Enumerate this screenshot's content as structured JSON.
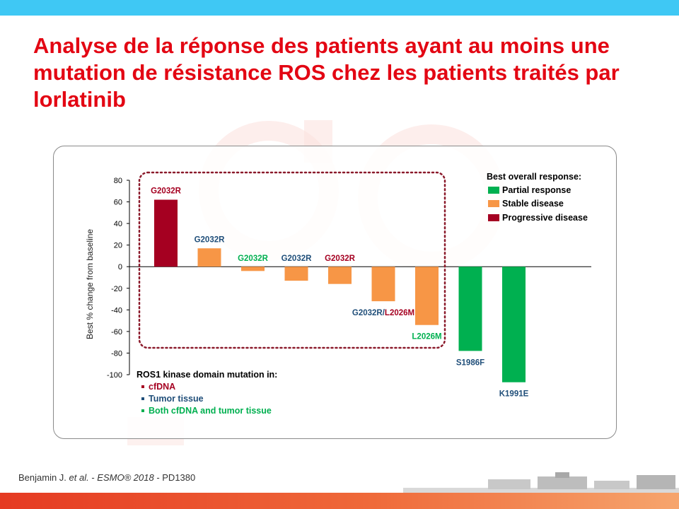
{
  "slide": {
    "title": "Analyse de la réponse des patients ayant au moins une mutation de résistance ROS chez les patients traités par lorlatinib",
    "footer_author": "Benjamin J. ",
    "footer_etal": "et al.",
    "footer_sep": " - ",
    "footer_conf": "ESMO® 2018",
    "footer_ref": " - PD1380"
  },
  "colors": {
    "title": "#e30613",
    "partial": "#00b050",
    "stable": "#f79646",
    "progressive": "#a50021",
    "cfdna": "#a50021",
    "tumor": "#1f4e79",
    "both": "#00b050"
  },
  "legend": {
    "title": "Best overall response:",
    "items": [
      {
        "label": "Partial response",
        "color": "#00b050"
      },
      {
        "label": "Stable disease",
        "color": "#f79646"
      },
      {
        "label": "Progressive disease",
        "color": "#a50021"
      }
    ]
  },
  "mutation_source": {
    "title": "ROS1 kinase domain mutation in:",
    "items": [
      {
        "label": "cfDNA",
        "color": "#a50021"
      },
      {
        "label": "Tumor tissue",
        "color": "#1f4e79"
      },
      {
        "label": "Both cfDNA and tumor tissue",
        "color": "#00b050"
      }
    ]
  },
  "chart_data": {
    "type": "bar",
    "ylabel": "Best % change from baseline",
    "xlabel": "",
    "ylim": [
      -100,
      80
    ],
    "yticks": [
      80,
      60,
      40,
      20,
      0,
      -20,
      -40,
      -60,
      -80,
      -100
    ],
    "grid": false,
    "legend_position": "top-right",
    "bars": [
      {
        "value": 62,
        "response": "Progressive disease",
        "color": "#a50021",
        "labels": [
          {
            "text": "G2032R",
            "color": "#a50021"
          }
        ]
      },
      {
        "value": 17,
        "response": "Stable disease",
        "color": "#f79646",
        "labels": [
          {
            "text": "G2032R",
            "color": "#1f4e79"
          }
        ]
      },
      {
        "value": -4,
        "response": "Stable disease",
        "color": "#f79646",
        "labels": [
          {
            "text": "G2032R",
            "color": "#00b050"
          }
        ]
      },
      {
        "value": -13,
        "response": "Stable disease",
        "color": "#f79646",
        "labels": [
          {
            "text": "G2032R",
            "color": "#1f4e79"
          }
        ]
      },
      {
        "value": -16,
        "response": "Stable disease",
        "color": "#f79646",
        "labels": [
          {
            "text": "G2032R",
            "color": "#a50021"
          }
        ]
      },
      {
        "value": -32,
        "response": "Stable disease",
        "color": "#f79646",
        "labels": [
          {
            "text": "G2032R/",
            "color": "#1f4e79"
          },
          {
            "text": "L2026M",
            "color": "#a50021"
          }
        ]
      },
      {
        "value": -54,
        "response": "Stable disease",
        "color": "#f79646",
        "labels": [
          {
            "text": "L2026M",
            "color": "#00b050"
          }
        ]
      },
      {
        "value": -78,
        "response": "Partial response",
        "color": "#00b050",
        "labels": [
          {
            "text": "S1986F",
            "color": "#1f4e79"
          }
        ]
      },
      {
        "value": -107,
        "response": "Partial response",
        "color": "#00b050",
        "labels": [
          {
            "text": "K1991E",
            "color": "#1f4e79"
          }
        ]
      }
    ]
  }
}
